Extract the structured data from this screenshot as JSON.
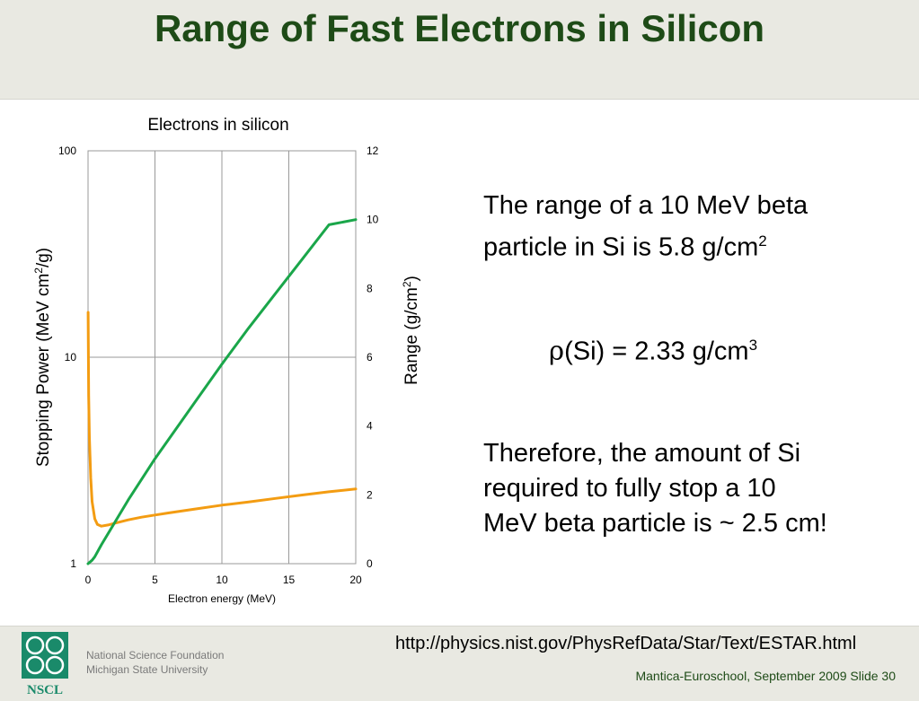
{
  "slide": {
    "title": "Range of Fast Electrons in Silicon"
  },
  "text": {
    "para1_line1": "The range of a 10 MeV beta",
    "para1_line2": "particle in Si is 5.8 g/cm",
    "para1_sup": "2",
    "density_rho": "ρ",
    "density_text": "(Si) = 2.33 g/cm",
    "density_sup": "3",
    "para2_line1": "Therefore, the amount of Si",
    "para2_line2": "required to fully stop a 10",
    "para2_line3": "MeV beta particle is ~ 2.5 cm!"
  },
  "footer": {
    "url": "http://physics.nist.gov/PhysRefData/Star/Text/ESTAR.html",
    "org1": "National Science Foundation",
    "org2": "Michigan State University",
    "slide_info": "Mantica-Euroschool, September 2009 Slide 30",
    "logo_text": "NSCL"
  },
  "chart_data": {
    "type": "line",
    "title": "Electrons in silicon",
    "xlabel": "Electron energy (MeV)",
    "ylabel_left_main": "Stopping Power (MeV cm",
    "ylabel_left_sup": "2",
    "ylabel_left_tail": "/g)",
    "ylabel_right_main": "Range (g/cm",
    "ylabel_right_sup": "2",
    "ylabel_right_tail": ")",
    "xlim": [
      0,
      20
    ],
    "ylim_left": [
      1,
      100
    ],
    "ylim_right": [
      0,
      12
    ],
    "left_scale": "log",
    "grid": true,
    "x_ticks": [
      "0",
      "5",
      "10",
      "15",
      "20"
    ],
    "y_left_ticks": [
      "1",
      "10",
      "100"
    ],
    "y_right_ticks": [
      "0",
      "2",
      "4",
      "6",
      "8",
      "10",
      "12"
    ],
    "colors": {
      "stopping_power": "#f39c12",
      "range": "#1aa64a",
      "grid": "#999999"
    },
    "series": [
      {
        "axis": "left",
        "color": "#f39c12",
        "x": [
          0.01,
          0.02,
          0.05,
          0.1,
          0.2,
          0.3,
          0.5,
          0.7,
          1.0,
          1.5,
          2,
          3,
          4,
          5,
          6,
          8,
          10,
          12,
          14,
          16,
          18,
          20
        ],
        "y": [
          16.5,
          12,
          6.5,
          4.1,
          2.6,
          2.0,
          1.65,
          1.55,
          1.52,
          1.54,
          1.57,
          1.63,
          1.68,
          1.72,
          1.76,
          1.84,
          1.92,
          1.99,
          2.07,
          2.15,
          2.23,
          2.3
        ]
      },
      {
        "axis": "right",
        "color": "#1aa64a",
        "x": [
          0,
          0.3,
          0.5,
          1,
          2,
          3,
          4,
          5,
          6,
          8,
          10,
          12,
          14,
          16,
          18,
          20
        ],
        "y": [
          0,
          0.1,
          0.2,
          0.55,
          1.2,
          1.85,
          2.45,
          3.05,
          3.6,
          4.7,
          5.8,
          6.85,
          7.85,
          8.85,
          9.85,
          10.0
        ]
      }
    ]
  }
}
